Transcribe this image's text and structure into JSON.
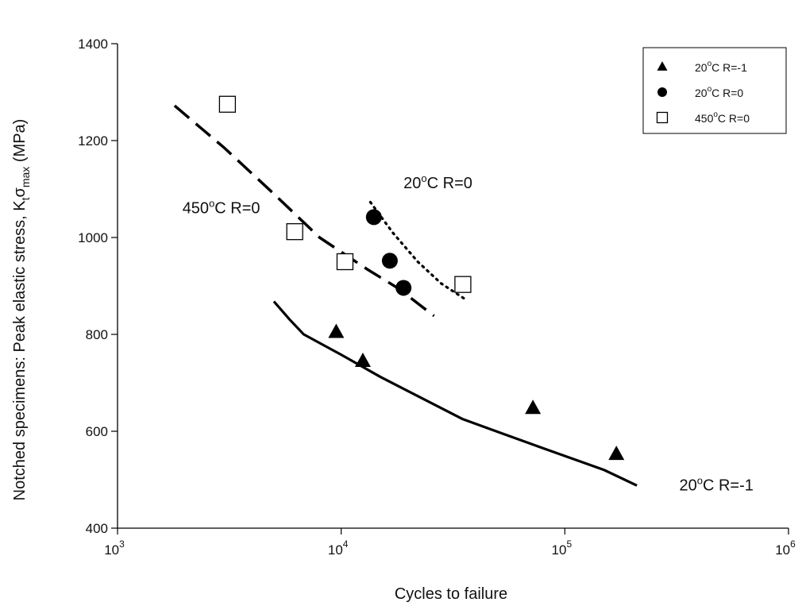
{
  "chart_data": {
    "type": "scatter",
    "title": "",
    "xlabel": "Cycles to failure",
    "ylabel": "Notched specimens: Peak elastic stress, K",
    "ylabel_sub1": "t",
    "ylabel_mid": "σ",
    "ylabel_sub2": "max",
    "ylabel_tail": " (MPa)",
    "xscale": "log",
    "xlim": [
      1000,
      1000000
    ],
    "ylim": [
      400,
      1400
    ],
    "grid": false,
    "legend_position": "top-right",
    "x_ticks": [
      {
        "base": "10",
        "exp": "3",
        "value": 1000
      },
      {
        "base": "10",
        "exp": "4",
        "value": 10000
      },
      {
        "base": "10",
        "exp": "5",
        "value": 100000
      },
      {
        "base": "10",
        "exp": "6",
        "value": 1000000
      }
    ],
    "y_ticks": [
      "400",
      "600",
      "800",
      "1000",
      "1200",
      "1400"
    ],
    "series": [
      {
        "marker": "triangle",
        "legend_prefix": "20",
        "legend_sup": "o",
        "legend_suffix": "C R=-1",
        "points": [
          [
            9500,
            805
          ],
          [
            12500,
            745
          ],
          [
            72000,
            648
          ],
          [
            170000,
            553
          ]
        ]
      },
      {
        "marker": "circle",
        "legend_prefix": "20",
        "legend_sup": "o",
        "legend_suffix": "C R=0",
        "points": [
          [
            14000,
            1042
          ],
          [
            16500,
            952
          ],
          [
            19000,
            896
          ]
        ]
      },
      {
        "marker": "square",
        "legend_prefix": "450",
        "legend_sup": "o",
        "legend_suffix": "C R=0",
        "points": [
          [
            3100,
            1275
          ],
          [
            6200,
            1012
          ],
          [
            10400,
            950
          ],
          [
            35000,
            903
          ]
        ]
      }
    ],
    "fit_lines": [
      {
        "style": "solid",
        "points": [
          [
            5000,
            868
          ],
          [
            5900,
            830
          ],
          [
            6800,
            800
          ],
          [
            10000,
            758
          ],
          [
            15000,
            712
          ],
          [
            35000,
            625
          ],
          [
            80000,
            565
          ],
          [
            150000,
            520
          ],
          [
            210000,
            488
          ]
        ]
      },
      {
        "style": "dashed",
        "points": [
          [
            1800,
            1272
          ],
          [
            3000,
            1185
          ],
          [
            5000,
            1090
          ],
          [
            8000,
            1000
          ],
          [
            13000,
            935
          ],
          [
            18000,
            895
          ],
          [
            26000,
            838
          ]
        ]
      },
      {
        "style": "dotted",
        "points": [
          [
            13500,
            1073
          ],
          [
            17000,
            1010
          ],
          [
            22000,
            950
          ],
          [
            28000,
            905
          ],
          [
            36000,
            872
          ]
        ]
      }
    ],
    "annotations": [
      {
        "prefix": "450",
        "sup": "o",
        "suffix": "C R=0",
        "x": 1950,
        "y": 1050
      },
      {
        "prefix": "20",
        "sup": "o",
        "suffix": "C R=0",
        "x": 19000,
        "y": 1102
      },
      {
        "prefix": "20",
        "sup": "o",
        "suffix": "C R=-1",
        "x": 325000,
        "y": 478
      }
    ]
  }
}
